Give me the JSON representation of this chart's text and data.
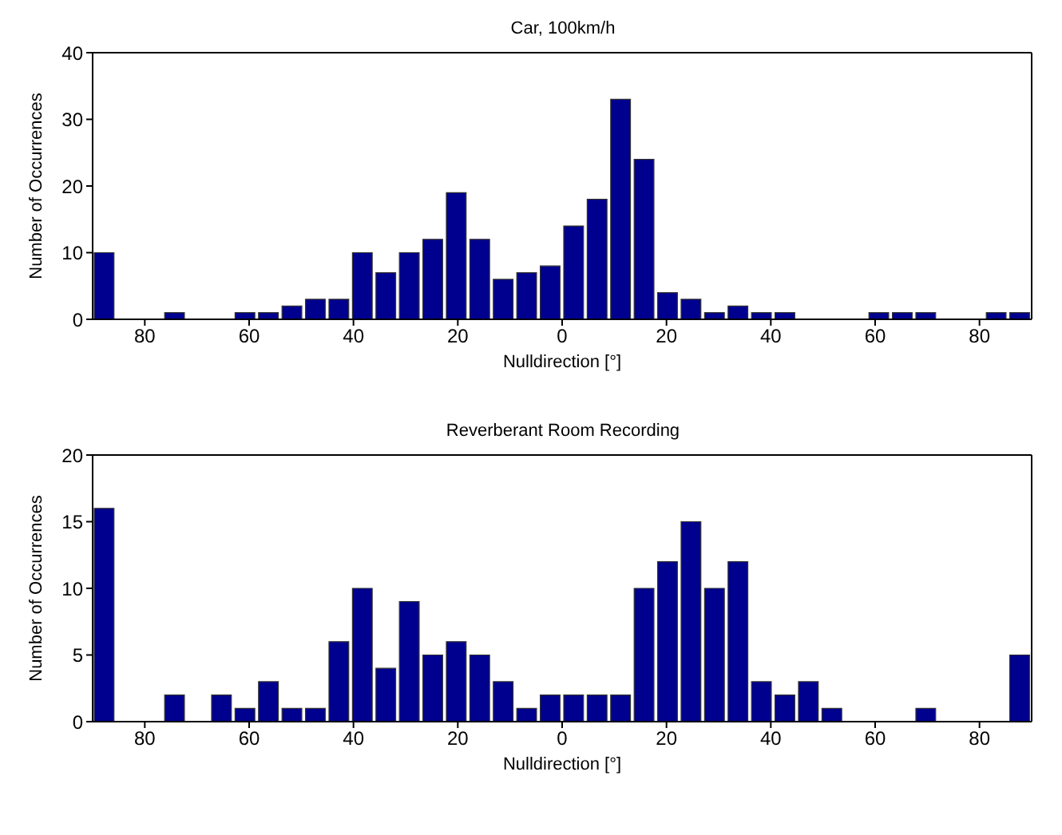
{
  "chart_data": [
    {
      "type": "histogram",
      "title": "Car, 100km/h",
      "xlabel": "Nulldirection [°]",
      "ylabel": "Number of Occurrences",
      "color": "#00008f",
      "bins": [
        -90,
        -85.5,
        -81,
        -76.5,
        -72,
        -67.5,
        -63,
        -58.5,
        -54,
        -49.5,
        -45,
        -40.5,
        -36,
        -31.5,
        -27,
        -22.5,
        -18,
        -13.5,
        -9,
        -4.5,
        0,
        4.5,
        9,
        13.5,
        18,
        22.5,
        27,
        31.5,
        36,
        40.5,
        45,
        49.5,
        54,
        58.5,
        63,
        67.5,
        72,
        76.5,
        81,
        85.5,
        90
      ],
      "values": [
        10,
        0,
        0,
        1,
        0,
        0,
        1,
        1,
        2,
        3,
        3,
        10,
        7,
        10,
        12,
        19,
        12,
        6,
        7,
        8,
        14,
        18,
        33,
        24,
        4,
        3,
        1,
        2,
        1,
        1,
        0,
        0,
        0,
        1,
        1,
        1,
        0,
        0,
        1,
        1
      ],
      "xlim": [
        -90,
        90
      ],
      "xticks": [
        {
          "value": -80,
          "label": "80"
        },
        {
          "value": -60,
          "label": "60"
        },
        {
          "value": -40,
          "label": "40"
        },
        {
          "value": -20,
          "label": "20"
        },
        0,
        20,
        40,
        60,
        80
      ],
      "ylim": [
        0,
        40
      ],
      "yticks": [
        0,
        10,
        20,
        30,
        40
      ]
    },
    {
      "type": "histogram",
      "title": "Reverberant Room Recording",
      "xlabel": "Nulldirection [°]",
      "ylabel": "Number of Occurrences",
      "color": "#00008f",
      "bins": [
        -90,
        -85.5,
        -81,
        -76.5,
        -72,
        -67.5,
        -63,
        -58.5,
        -54,
        -49.5,
        -45,
        -40.5,
        -36,
        -31.5,
        -27,
        -22.5,
        -18,
        -13.5,
        -9,
        -4.5,
        0,
        4.5,
        9,
        13.5,
        18,
        22.5,
        27,
        31.5,
        36,
        40.5,
        45,
        49.5,
        54,
        58.5,
        63,
        67.5,
        72,
        76.5,
        81,
        85.5,
        90
      ],
      "values": [
        16,
        0,
        0,
        2,
        0,
        2,
        1,
        3,
        1,
        1,
        6,
        10,
        4,
        9,
        5,
        6,
        5,
        3,
        1,
        2,
        2,
        2,
        2,
        10,
        12,
        15,
        10,
        12,
        3,
        2,
        3,
        1,
        0,
        0,
        0,
        1,
        0,
        0,
        0,
        5
      ],
      "xlim": [
        -90,
        90
      ],
      "xticks": [
        {
          "value": -80,
          "label": "80"
        },
        {
          "value": -60,
          "label": "60"
        },
        {
          "value": -40,
          "label": "40"
        },
        {
          "value": -20,
          "label": "20"
        },
        0,
        20,
        40,
        60,
        80
      ],
      "ylim": [
        0,
        20
      ],
      "yticks": [
        0,
        5,
        10,
        15,
        20
      ]
    }
  ]
}
